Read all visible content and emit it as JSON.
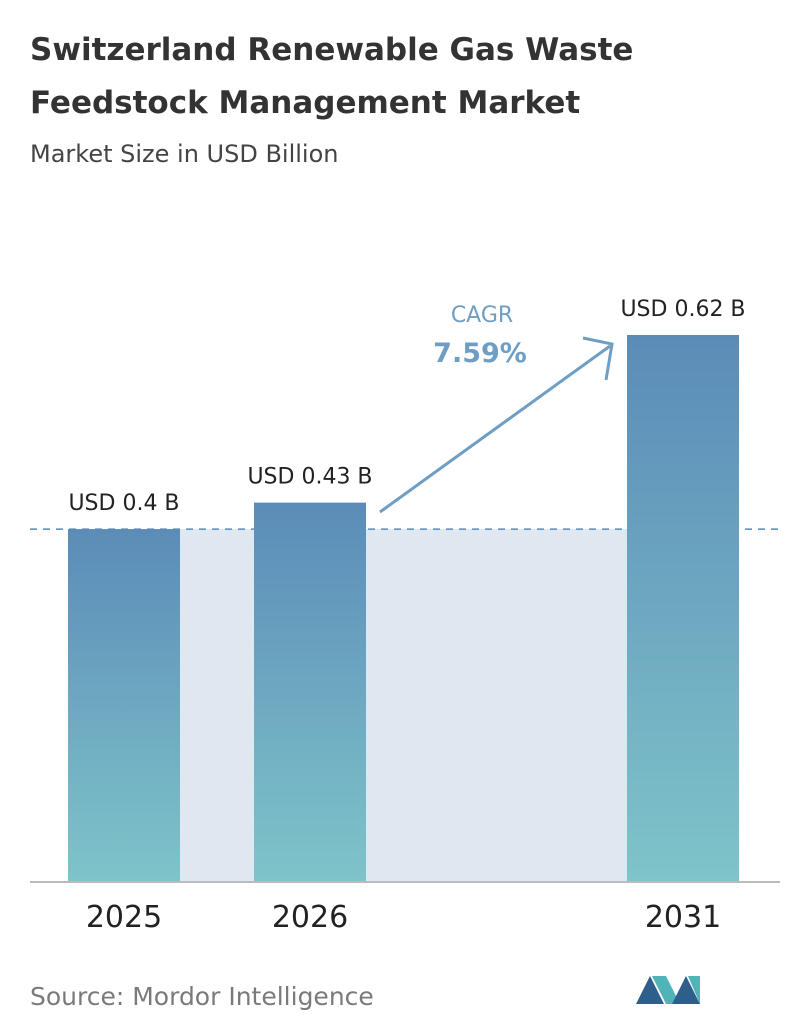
{
  "chart_data": {
    "type": "bar",
    "title": [
      "Switzerland Renewable Gas Waste",
      "Feedstock Management Market"
    ],
    "subtitle": "Market Size in USD Billion",
    "categories": [
      "2025",
      "2026",
      "2031"
    ],
    "values": [
      0.4,
      0.43,
      0.62
    ],
    "value_labels": [
      "USD 0.4 B",
      "USD 0.43 B",
      "USD 0.62 B"
    ],
    "annotations": {
      "cagr_label": "CAGR",
      "cagr_value": "7.59%"
    },
    "source": "Source: Mordor Intelligence"
  }
}
